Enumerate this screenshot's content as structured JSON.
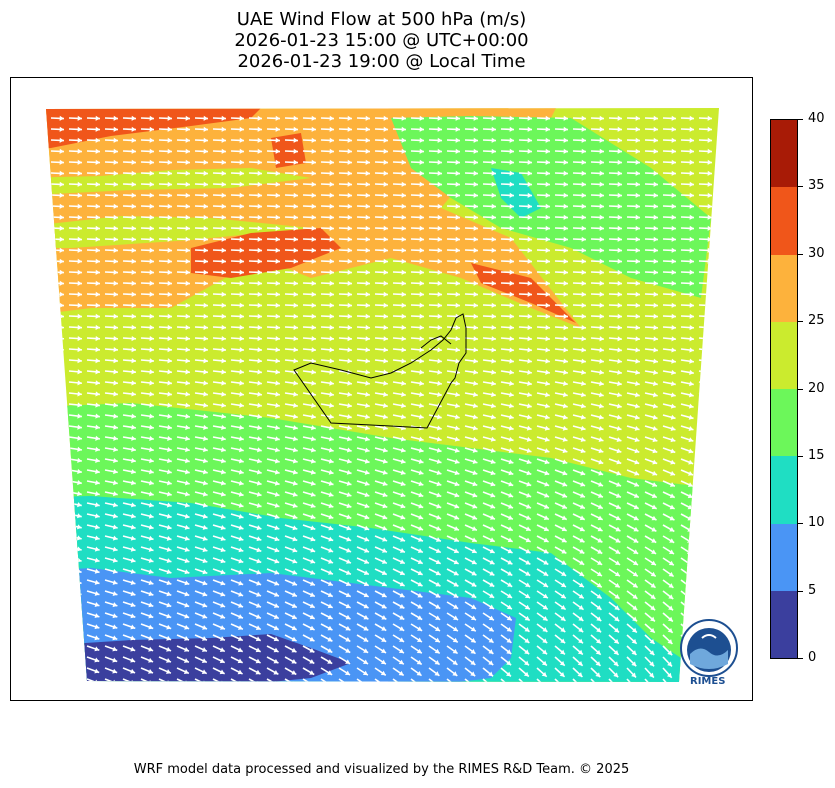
{
  "title": {
    "line1": "UAE Wind Flow at 500 hPa (m/s)",
    "line2": "2026-01-23 15:00 @ UTC+00:00",
    "line3": "2026-01-23 19:00 @ Local Time"
  },
  "colorbar": {
    "ticks": [
      "0",
      "5",
      "10",
      "15",
      "20",
      "25",
      "30",
      "35",
      "40"
    ],
    "bins": [
      {
        "from": 0,
        "to": 5,
        "color": "#3b3f9e"
      },
      {
        "from": 5,
        "to": 10,
        "color": "#4a95f5"
      },
      {
        "from": 10,
        "to": 15,
        "color": "#1fdec3"
      },
      {
        "from": 15,
        "to": 20,
        "color": "#6cf75a"
      },
      {
        "from": 20,
        "to": 25,
        "color": "#cbeb2e"
      },
      {
        "from": 25,
        "to": 30,
        "color": "#fdb23c"
      },
      {
        "from": 30,
        "to": 35,
        "color": "#f0561a"
      },
      {
        "from": 35,
        "to": 40,
        "color": "#a81b06"
      }
    ]
  },
  "map": {
    "variable": "wind speed",
    "units": "m/s",
    "level": "500 hPa",
    "vectors": "wind direction arrows (white)",
    "boundary": "UAE border outline"
  },
  "logo": {
    "text": "RIMES",
    "icon": "rimes-logo-icon"
  },
  "footer": "WRF model data processed and visualized by the RIMES R&D Team. © 2025"
}
